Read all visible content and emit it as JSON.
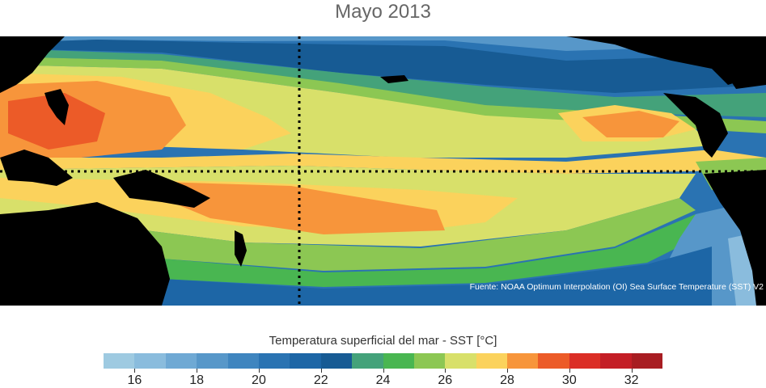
{
  "title": "Mayo 2013",
  "source": "Fuente: NOAA Optimum Interpolation (OI) Sea Surface Temperature (SST) V2",
  "colorbar": {
    "label": "Temperatura superficial del mar - SST",
    "unit": "[°C]",
    "min": 15,
    "max": 33,
    "step": 1,
    "colors": [
      "#9ecae1",
      "#8abcdd",
      "#6fa9d4",
      "#5797c9",
      "#3f85bf",
      "#2a73b2",
      "#1d66a6",
      "#175b94",
      "#44a27a",
      "#49b651",
      "#8cc753",
      "#d8e06a",
      "#fbd25c",
      "#f7953b",
      "#ec5b28",
      "#db2e26",
      "#c41e26",
      "#a81d22"
    ],
    "tick_labels": [
      "16",
      "18",
      "20",
      "22",
      "24",
      "26",
      "28",
      "30",
      "32"
    ]
  },
  "map": {
    "region": "Tropical Pacific",
    "land_color": "#000000",
    "reference_lines": [
      "equator",
      "dateline"
    ]
  }
}
